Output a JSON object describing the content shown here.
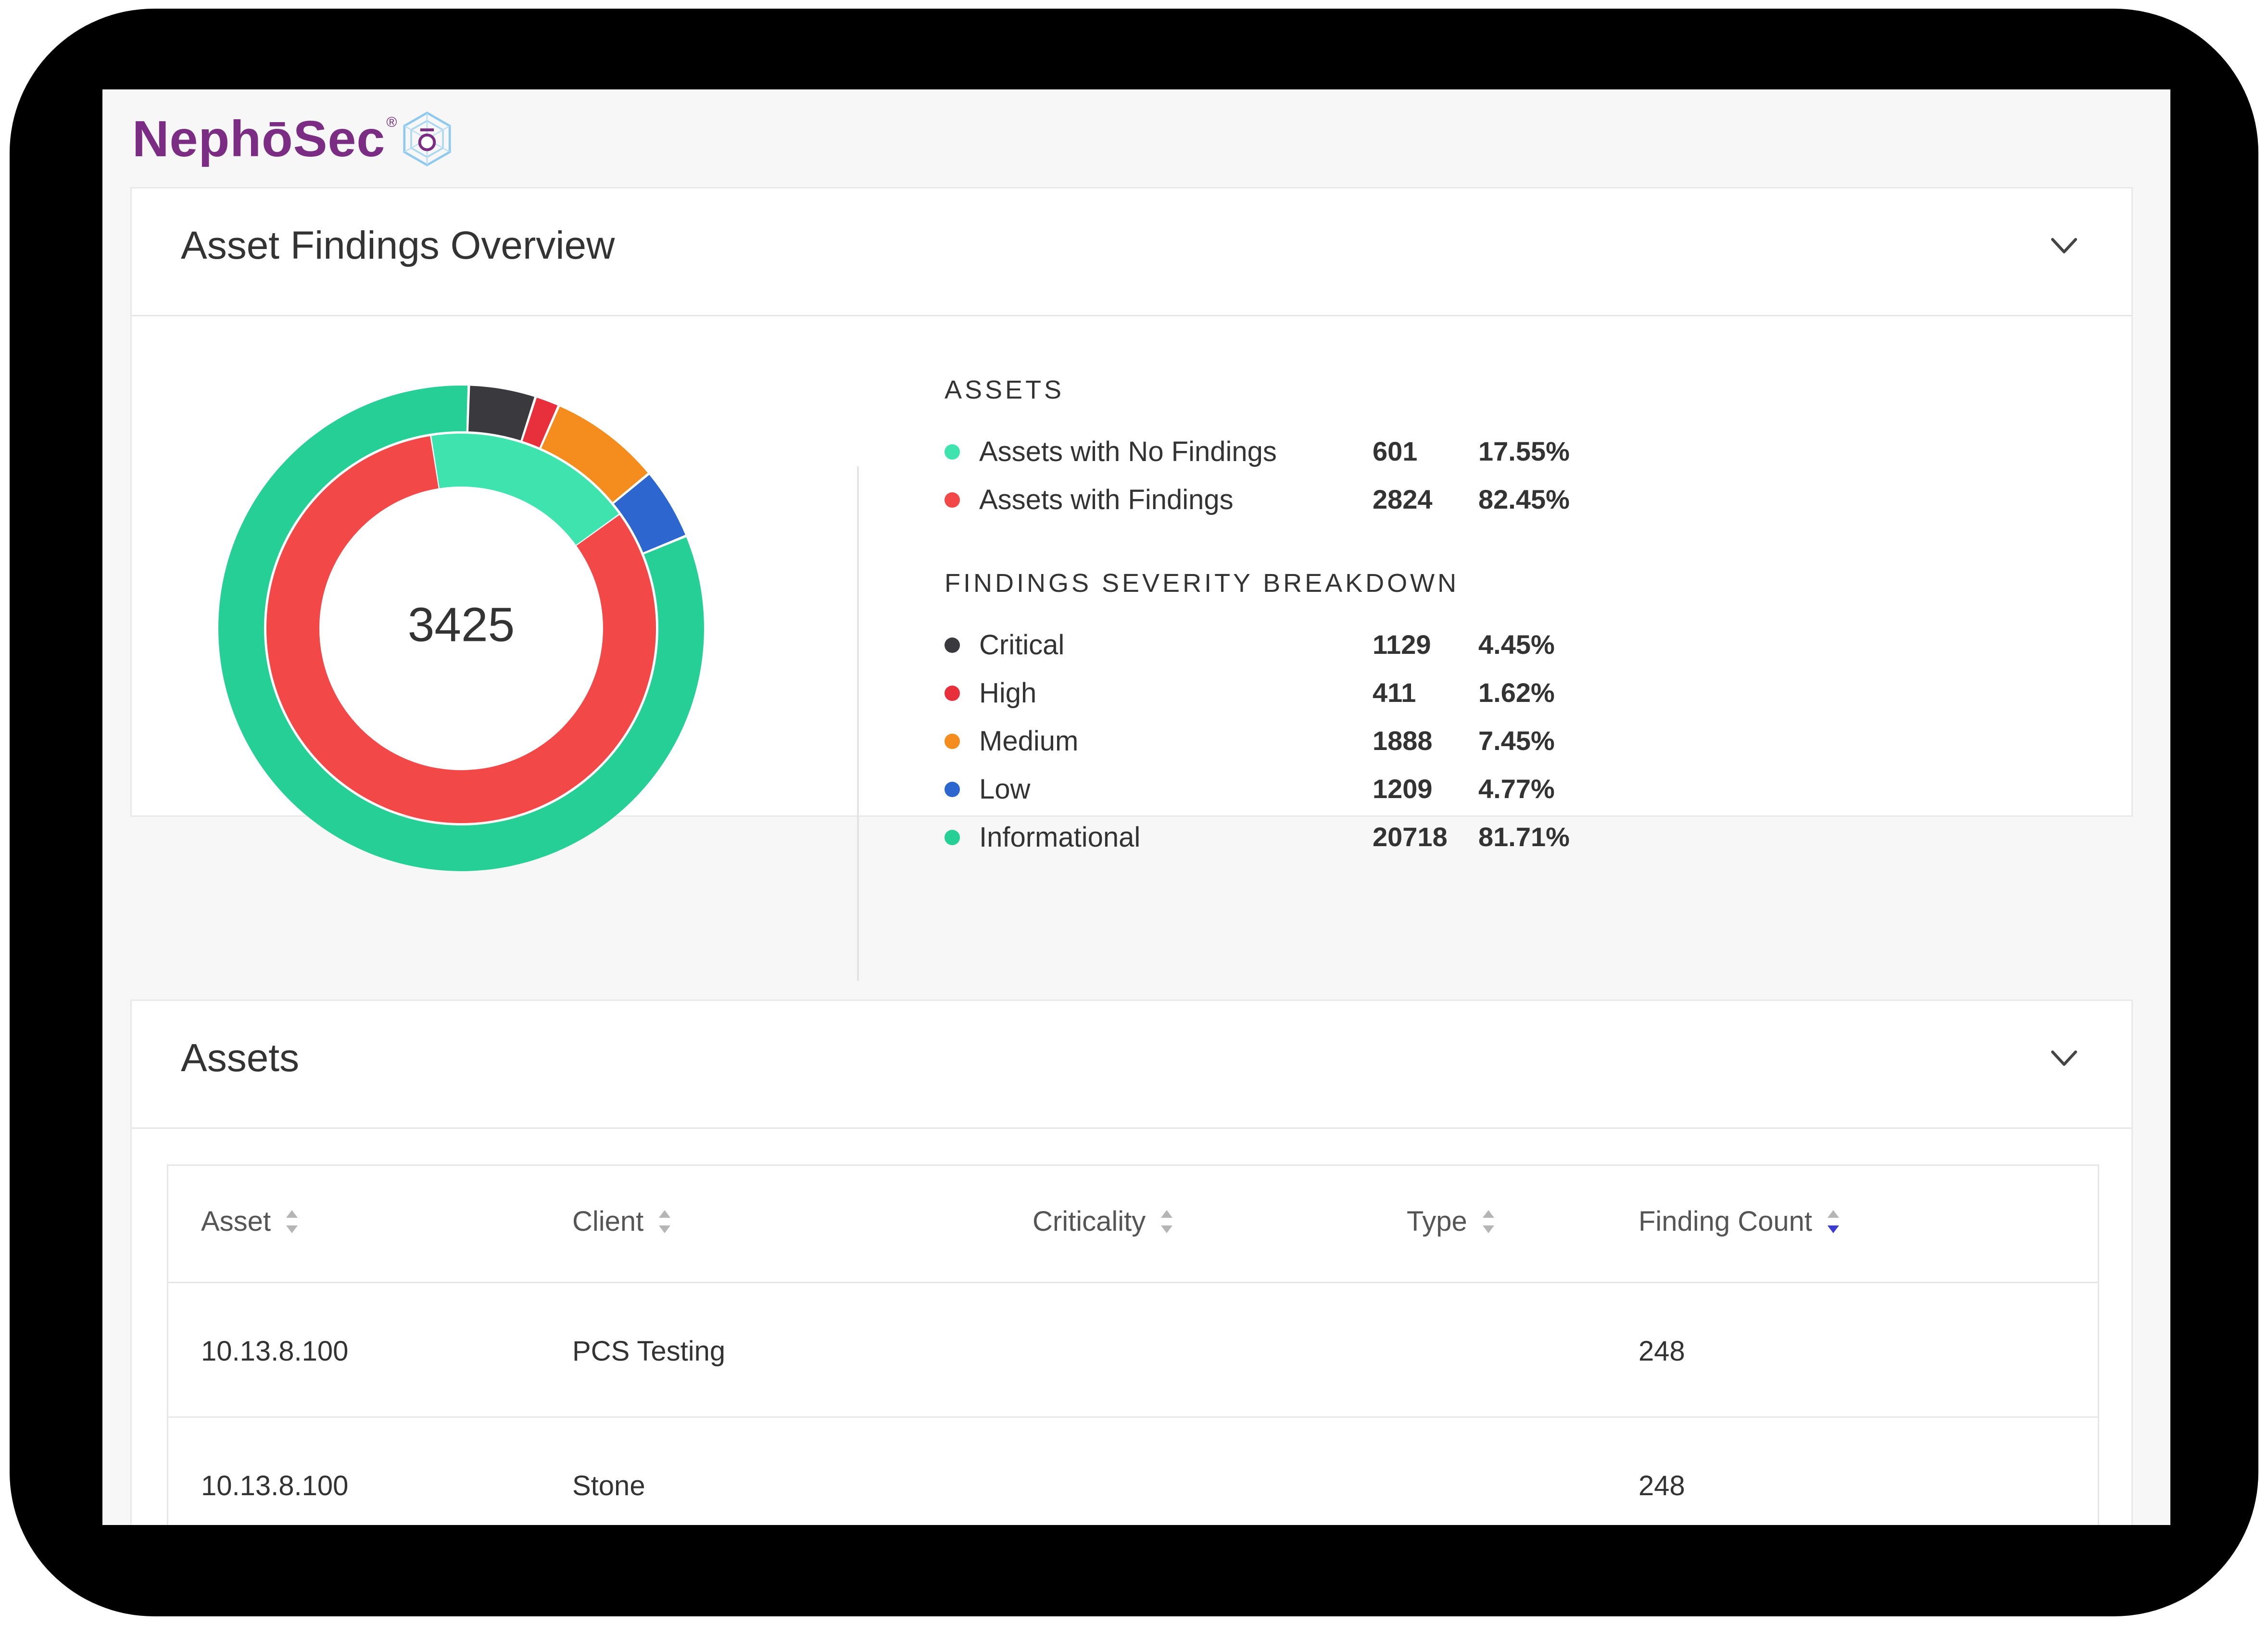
{
  "brand": {
    "name": "NephōSec",
    "registered_mark": "®"
  },
  "overview": {
    "title": "Asset Findings Overview",
    "total": "3425",
    "assets_heading": "ASSETS",
    "assets": [
      {
        "label": "Assets with No Findings",
        "count": "601",
        "percent": "17.55%",
        "color": "#3fe3ad"
      },
      {
        "label": "Assets with Findings",
        "count": "2824",
        "percent": "82.45%",
        "color": "#f24848"
      }
    ],
    "severity_heading": "FINDINGS SEVERITY BREAKDOWN",
    "severity": [
      {
        "label": "Critical",
        "count": "1129",
        "percent": "4.45%",
        "color": "#3a3a3e"
      },
      {
        "label": "High",
        "count": "411",
        "percent": "1.62%",
        "color": "#e8303c"
      },
      {
        "label": "Medium",
        "count": "1888",
        "percent": "7.45%",
        "color": "#f58d1e"
      },
      {
        "label": "Low",
        "count": "1209",
        "percent": "4.77%",
        "color": "#2e66d0"
      },
      {
        "label": "Informational",
        "count": "20718",
        "percent": "81.71%",
        "color": "#26cf96"
      }
    ]
  },
  "assets_panel": {
    "title": "Assets",
    "columns": [
      "Asset",
      "Client",
      "Criticality",
      "Type",
      "Finding Count"
    ],
    "rows": [
      {
        "asset": "10.13.8.100",
        "client": "PCS Testing",
        "criticality": "",
        "type": "",
        "finding_count": "248"
      },
      {
        "asset": "10.13.8.100",
        "client": "Stone",
        "criticality": "",
        "type": "",
        "finding_count": "248"
      }
    ]
  }
}
